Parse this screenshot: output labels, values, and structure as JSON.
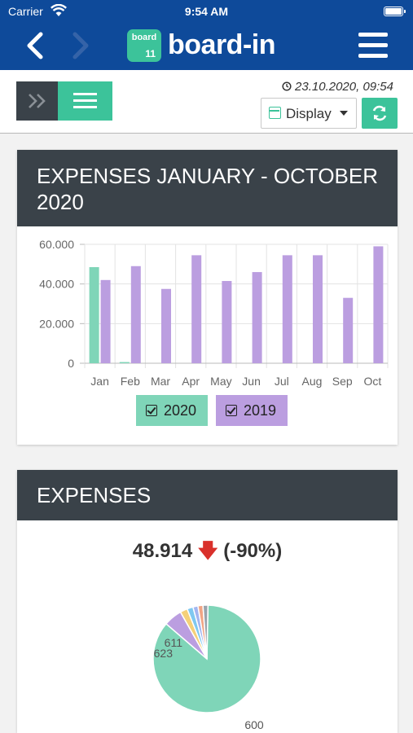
{
  "status": {
    "carrier": "Carrier",
    "time": "9:54 AM"
  },
  "app": {
    "logo_small": "board",
    "logo_num": "11",
    "name": "board-in"
  },
  "toolbar": {
    "datetime": "23.10.2020, 09:54",
    "display_label": "Display"
  },
  "colors": {
    "brand": "#0e4a9a",
    "accent": "#3cc39a",
    "dark": "#3a4249",
    "series_2020": "#7fd5b8",
    "series_2019": "#bb9ee0",
    "down": "#d9302b"
  },
  "card1": {
    "title": "EXPENSES JANUARY - OCTOBER 2020"
  },
  "card2": {
    "title": "EXPENSES",
    "kpi_value": "48.914",
    "kpi_change": "(-90%)"
  },
  "chart_data": [
    {
      "type": "bar",
      "categories": [
        "Jan",
        "Feb",
        "Mar",
        "Apr",
        "May",
        "Jun",
        "Jul",
        "Aug",
        "Sep",
        "Oct"
      ],
      "series": [
        {
          "name": "2020",
          "values": [
            48500,
            600,
            0,
            0,
            0,
            0,
            0,
            0,
            0,
            0
          ]
        },
        {
          "name": "2019",
          "values": [
            42000,
            49000,
            37500,
            54500,
            41500,
            46000,
            54500,
            54500,
            33000,
            59000
          ]
        }
      ],
      "yticks": [
        "0",
        "20.000",
        "40.000",
        "60.000"
      ],
      "ylim": [
        0,
        60000
      ],
      "grid": true,
      "legend": "bottom-center"
    },
    {
      "type": "pie",
      "slices": [
        {
          "label": "600",
          "value": 86
        },
        {
          "label": "623",
          "value": 5.5
        },
        {
          "label": "611",
          "value": 2.2
        },
        {
          "label": "",
          "value": 1.8
        },
        {
          "label": "",
          "value": 1.5
        },
        {
          "label": "",
          "value": 1.5
        },
        {
          "label": "",
          "value": 1.5
        }
      ],
      "colors": [
        "#7fd5b8",
        "#bb9ee0",
        "#f5d079",
        "#7fc8f0",
        "#a3b5f0",
        "#f0a585",
        "#9aa3ad"
      ]
    }
  ]
}
